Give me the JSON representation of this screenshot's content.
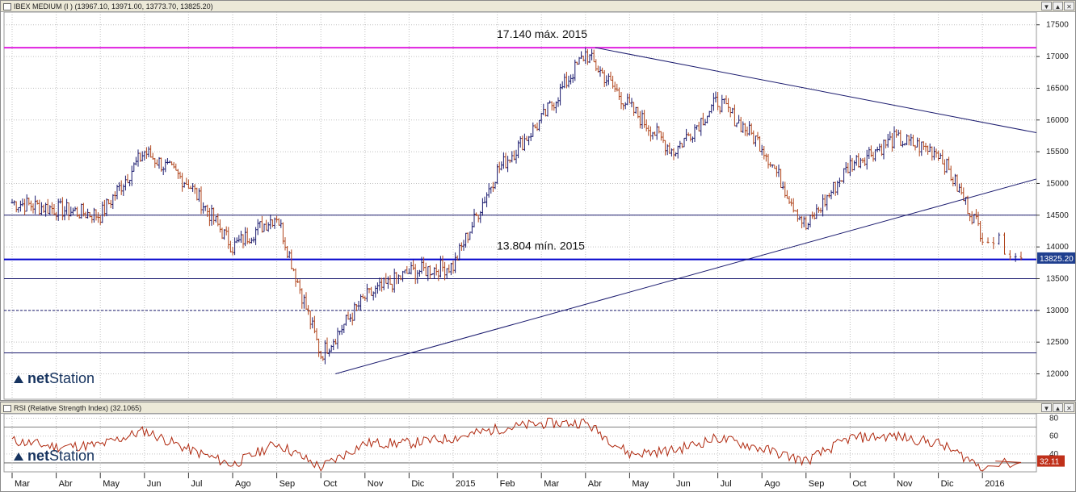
{
  "price_panel": {
    "title": "IBEX MEDIUM (I ) (13967.10, 13971.00, 13773.70, 13825.20)",
    "last_price_label": "13825.20",
    "annotation_max": "17.140 máx. 2015",
    "annotation_min": "13.804 mín. 2015",
    "watermark": {
      "brand_bold": "net",
      "brand_rest": "Station"
    }
  },
  "rsi_panel": {
    "title": "RSI (Relative Strength Index) (32.1065)",
    "last_value_label": "32.11",
    "watermark": {
      "brand_bold": "net",
      "brand_rest": "Station"
    }
  },
  "buttons": {
    "down": "▼",
    "up": "▲",
    "close": "✕"
  },
  "x_axis_labels": [
    "Mar",
    "Abr",
    "May",
    "Jun",
    "Jul",
    "Ago",
    "Sep",
    "Oct",
    "Nov",
    "Dic",
    "2015",
    "Feb",
    "Mar",
    "Abr",
    "May",
    "Jun",
    "Jul",
    "Ago",
    "Sep",
    "Oct",
    "Nov",
    "Dic",
    "2016"
  ],
  "colors": {
    "accent_magenta": "#e020e0",
    "support_blue": "#0000cc",
    "candles": "#1a1a6e",
    "candles_down": "#b0451c",
    "rsi_line": "#b02a10",
    "label_bg": "#1f3f8f"
  },
  "chart_data": [
    {
      "type": "line",
      "title": "IBEX MEDIUM (I ) (13967.10, 13971.00, 13773.70, 13825.20)",
      "y_ticks": [
        12000,
        12500,
        13000,
        13500,
        14000,
        14500,
        15000,
        15500,
        16000,
        16500,
        17000,
        17500
      ],
      "ylim": [
        11600,
        17700
      ],
      "x_months": [
        "Mar",
        "Abr",
        "May",
        "Jun",
        "Jul",
        "Ago",
        "Sep",
        "Oct",
        "Nov",
        "Dic",
        "2015",
        "Feb",
        "Mar",
        "Abr",
        "May",
        "Jun",
        "Jul",
        "Ago",
        "Sep",
        "Oct",
        "Nov",
        "Dic",
        "2016"
      ],
      "horizontal_levels": [
        {
          "value": 17140,
          "label": "17.140 máx. 2015",
          "color": "#e020e0"
        },
        {
          "value": 13804,
          "label": "13.804 mín. 2015",
          "color": "#0000cc"
        },
        {
          "value": 14500,
          "color": "#1a1a6e"
        },
        {
          "value": 13500,
          "color": "#1a1a6e"
        },
        {
          "value": 13000,
          "color": "#1a1a6e"
        },
        {
          "value": 12330,
          "color": "#1a1a6e"
        }
      ],
      "series": [
        {
          "values": [
            [
              "Mar",
              14700
            ],
            [
              "Abr",
              14600
            ],
            [
              "May",
              14500
            ],
            [
              "Jun",
              15500
            ],
            [
              "Jul",
              15000
            ],
            [
              "Ago",
              14000
            ],
            [
              "Sep",
              14500
            ],
            [
              "Oct",
              12300
            ],
            [
              "Nov",
              13200
            ],
            [
              "Dic",
              13600
            ],
            [
              "2015",
              13700
            ],
            [
              "Feb",
              15200
            ],
            [
              "Mar",
              16000
            ],
            [
              "Abr",
              17050
            ],
            [
              "May",
              16200
            ],
            [
              "Jun",
              15500
            ],
            [
              "Jul",
              16300
            ],
            [
              "Ago",
              15600
            ],
            [
              "Sep",
              14300
            ],
            [
              "Oct",
              15300
            ],
            [
              "Nov",
              15700
            ],
            [
              "Dic",
              15500
            ],
            [
              "2016",
              14200
            ],
            [
              "2016",
              13825
            ]
          ]
        }
      ],
      "last_value": 13825.2
    },
    {
      "type": "line",
      "title": "RSI (Relative Strength Index) (32.1065)",
      "y_ticks": [
        40,
        60,
        80
      ],
      "ylim": [
        20,
        85
      ],
      "x_months": [
        "Mar",
        "Abr",
        "May",
        "Jun",
        "Jul",
        "Ago",
        "Sep",
        "Oct",
        "Nov",
        "Dic",
        "2015",
        "Feb",
        "Mar",
        "Abr",
        "May",
        "Jun",
        "Jul",
        "Ago",
        "Sep",
        "Oct",
        "Nov",
        "Dic",
        "2016"
      ],
      "horizontal_levels": [
        70,
        30
      ],
      "series": [
        {
          "values": [
            [
              "Mar",
              55
            ],
            [
              "Abr",
              48
            ],
            [
              "May",
              50
            ],
            [
              "Jun",
              66
            ],
            [
              "Jul",
              45
            ],
            [
              "Ago",
              28
            ],
            [
              "Sep",
              52
            ],
            [
              "Oct",
              25
            ],
            [
              "Nov",
              52
            ],
            [
              "Dic",
              52
            ],
            [
              "2015",
              58
            ],
            [
              "Feb",
              68
            ],
            [
              "Mar",
              74
            ],
            [
              "Abr",
              75
            ],
            [
              "May",
              40
            ],
            [
              "Jun",
              44
            ],
            [
              "Jul",
              58
            ],
            [
              "Ago",
              46
            ],
            [
              "Sep",
              32
            ],
            [
              "Oct",
              58
            ],
            [
              "Nov",
              60
            ],
            [
              "Dic",
              52
            ],
            [
              "2016",
              26
            ],
            [
              "2016",
              32.11
            ]
          ]
        }
      ],
      "last_value": 32.11
    }
  ]
}
